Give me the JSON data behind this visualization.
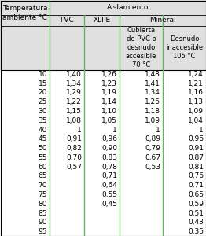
{
  "col_header1": "Aislamiento",
  "col_pvc": "PVC",
  "col_xlpe": "XLPE",
  "col_mineral": "Mineral",
  "col_mineral_sub1": "Cubierta\nde PVC o\ndesnudo\naccesible\n70 °C",
  "col_mineral_sub2": "Desnudo\ninaccesible\n105 °C",
  "temps": [
    10,
    15,
    20,
    25,
    30,
    35,
    40,
    45,
    50,
    55,
    60,
    65,
    70,
    75,
    80,
    85,
    90,
    95
  ],
  "pvc": [
    "1,40",
    "1,34",
    "1,29",
    "1,22",
    "1,15",
    "1,08",
    "1",
    "0,91",
    "0,82",
    "0,70",
    "0,57",
    "",
    "",
    "",
    "",
    "",
    "",
    ""
  ],
  "xlpe": [
    "1,26",
    "1,23",
    "1,19",
    "1,14",
    "1,10",
    "1,05",
    "1",
    "0,96",
    "0,90",
    "0,83",
    "0,78",
    "0,71",
    "0,64",
    "0,55",
    "0,45",
    "",
    "",
    ""
  ],
  "min1": [
    "1,48",
    "1,41",
    "1,34",
    "1,26",
    "1,18",
    "1,09",
    "1",
    "0,89",
    "0,79",
    "0,67",
    "0,53",
    "",
    "",
    "",
    "",
    "",
    "",
    ""
  ],
  "min2": [
    "1,24",
    "1,21",
    "1,16",
    "1,13",
    "1,09",
    "1,04",
    "1",
    "0,96",
    "0,91",
    "0,87",
    "0,81",
    "0,76",
    "0,71",
    "0,65",
    "0,59",
    "0,51",
    "0,43",
    "0,35"
  ],
  "header_bg": "#e0e0e0",
  "line_color": "#5cb85c",
  "text_color": "#000000",
  "figw": 2.62,
  "figh": 3.0,
  "dpi": 100
}
